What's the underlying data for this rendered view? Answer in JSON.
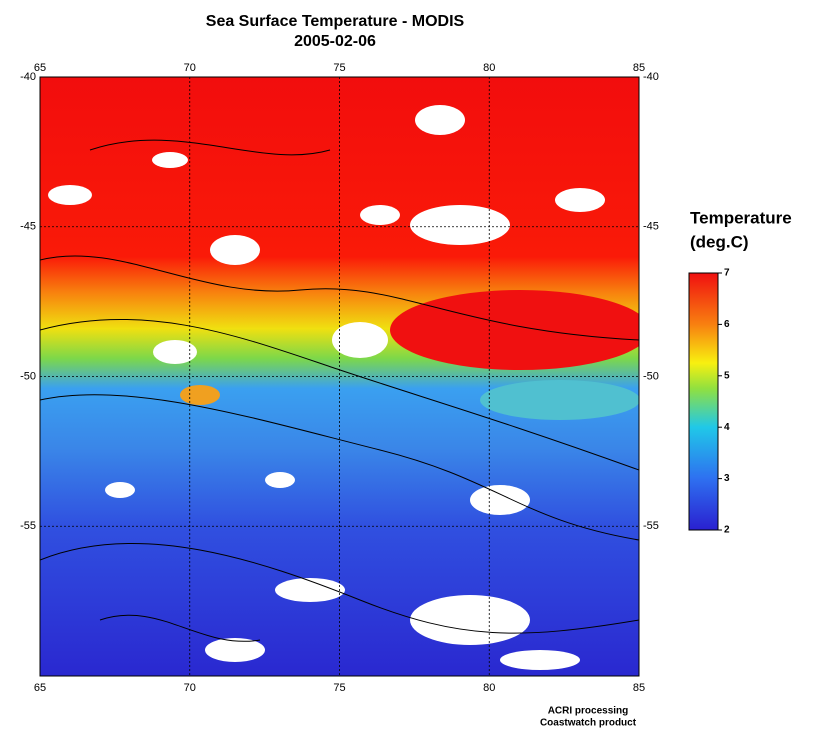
{
  "map": {
    "title": "Sea Surface Temperature - MODIS",
    "subtitle": "2005-02-06",
    "xlim": [
      65,
      85
    ],
    "ylim": [
      -60,
      -40
    ],
    "xticks": [
      65,
      70,
      75,
      80,
      85
    ],
    "yticks": [
      -40,
      -45,
      -50,
      -55
    ],
    "grid": true
  },
  "colorbar": {
    "title": [
      "Temperature",
      "(deg.C)"
    ],
    "lim": [
      2,
      7
    ],
    "ticks": [
      2,
      3,
      4,
      5,
      6,
      7
    ]
  },
  "credits": [
    "ACRI processing",
    "Coastwatch product"
  ]
}
